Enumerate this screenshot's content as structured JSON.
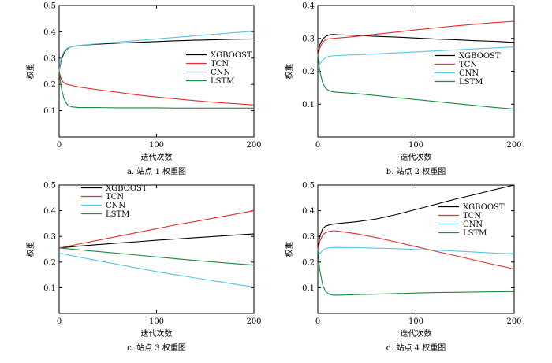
{
  "chart_data": [
    {
      "type": "line",
      "title": "",
      "caption": "a. 站点 1 权重图",
      "xlabel": "迭代次数",
      "ylabel": "权重",
      "xlim": [
        0,
        200
      ],
      "ylim": [
        0,
        0.5
      ],
      "xticks": [
        0,
        100,
        200
      ],
      "yticks": [
        0.1,
        0.2,
        0.3,
        0.4,
        0.5
      ],
      "legend_position": "middle-right",
      "series": [
        {
          "name": "XGBOOST",
          "color": "#000000",
          "x": [
            0,
            2,
            5,
            8,
            12,
            20,
            40,
            60,
            80,
            100,
            120,
            140,
            160,
            180,
            200
          ],
          "y": [
            0.25,
            0.29,
            0.32,
            0.335,
            0.343,
            0.348,
            0.353,
            0.357,
            0.36,
            0.363,
            0.366,
            0.368,
            0.37,
            0.372,
            0.373
          ]
        },
        {
          "name": "TCN",
          "color": "#e0312d",
          "x": [
            0,
            2,
            5,
            8,
            12,
            20,
            40,
            60,
            80,
            100,
            120,
            140,
            160,
            180,
            200
          ],
          "y": [
            0.25,
            0.22,
            0.205,
            0.2,
            0.197,
            0.19,
            0.18,
            0.17,
            0.16,
            0.152,
            0.145,
            0.138,
            0.132,
            0.127,
            0.122
          ]
        },
        {
          "name": "CNN",
          "color": "#5bc3e6",
          "x": [
            0,
            2,
            5,
            8,
            12,
            20,
            40,
            60,
            80,
            100,
            120,
            140,
            160,
            180,
            200
          ],
          "y": [
            0.25,
            0.3,
            0.325,
            0.337,
            0.343,
            0.348,
            0.355,
            0.361,
            0.367,
            0.373,
            0.379,
            0.385,
            0.391,
            0.397,
            0.402
          ]
        },
        {
          "name": "LSTM",
          "color": "#1b8a3f",
          "x": [
            0,
            2,
            5,
            8,
            12,
            20,
            40,
            60,
            80,
            100,
            120,
            140,
            160,
            180,
            200
          ],
          "y": [
            0.25,
            0.19,
            0.145,
            0.125,
            0.115,
            0.112,
            0.112,
            0.111,
            0.111,
            0.111,
            0.11,
            0.11,
            0.11,
            0.11,
            0.11
          ]
        }
      ]
    },
    {
      "type": "line",
      "title": "",
      "caption": "b. 站点 2 权重图",
      "xlabel": "迭代次数",
      "ylabel": "权重",
      "xlim": [
        0,
        200
      ],
      "ylim": [
        0,
        0.4
      ],
      "xticks": [
        0,
        100,
        200
      ],
      "yticks": [
        0.1,
        0.2,
        0.3,
        0.4
      ],
      "legend_position": "middle-right",
      "series": [
        {
          "name": "XGBOOST",
          "color": "#000000",
          "x": [
            0,
            2,
            5,
            8,
            12,
            16,
            20,
            40,
            60,
            80,
            100,
            120,
            140,
            160,
            180,
            200
          ],
          "y": [
            0.25,
            0.28,
            0.298,
            0.306,
            0.311,
            0.312,
            0.311,
            0.309,
            0.306,
            0.304,
            0.301,
            0.298,
            0.296,
            0.293,
            0.291,
            0.288
          ]
        },
        {
          "name": "TCN",
          "color": "#e0312d",
          "x": [
            0,
            2,
            5,
            8,
            12,
            20,
            40,
            60,
            80,
            100,
            120,
            140,
            160,
            180,
            200
          ],
          "y": [
            0.25,
            0.27,
            0.288,
            0.296,
            0.299,
            0.301,
            0.306,
            0.313,
            0.319,
            0.326,
            0.332,
            0.338,
            0.343,
            0.348,
            0.352
          ]
        },
        {
          "name": "CNN",
          "color": "#5bc3e6",
          "x": [
            0,
            2,
            5,
            8,
            12,
            20,
            40,
            60,
            80,
            100,
            120,
            140,
            160,
            180,
            200
          ],
          "y": [
            0.25,
            0.222,
            0.234,
            0.242,
            0.246,
            0.248,
            0.25,
            0.253,
            0.256,
            0.259,
            0.262,
            0.265,
            0.268,
            0.271,
            0.274
          ]
        },
        {
          "name": "LSTM",
          "color": "#1b8a3f",
          "x": [
            0,
            2,
            5,
            8,
            12,
            16,
            20,
            40,
            60,
            80,
            100,
            120,
            140,
            160,
            180,
            200
          ],
          "y": [
            0.25,
            0.2,
            0.165,
            0.148,
            0.14,
            0.137,
            0.136,
            0.132,
            0.126,
            0.12,
            0.114,
            0.108,
            0.102,
            0.096,
            0.09,
            0.085
          ]
        }
      ]
    },
    {
      "type": "line",
      "title": "",
      "caption": "c. 站点 3 权重图",
      "xlabel": "迭代次数",
      "ylabel": "权重",
      "xlim": [
        0,
        200
      ],
      "ylim": [
        0,
        0.5
      ],
      "xticks": [
        0,
        100,
        200
      ],
      "yticks": [
        0.1,
        0.2,
        0.3,
        0.4,
        0.5
      ],
      "legend_position": "top-left",
      "series": [
        {
          "name": "XGBOOST",
          "color": "#000000",
          "x": [
            0,
            20,
            40,
            60,
            80,
            100,
            120,
            140,
            160,
            180,
            200
          ],
          "y": [
            0.255,
            0.262,
            0.268,
            0.274,
            0.279,
            0.285,
            0.29,
            0.295,
            0.3,
            0.305,
            0.31
          ]
        },
        {
          "name": "TCN",
          "color": "#e0312d",
          "x": [
            0,
            20,
            40,
            60,
            80,
            100,
            120,
            140,
            160,
            180,
            200
          ],
          "y": [
            0.255,
            0.27,
            0.285,
            0.3,
            0.315,
            0.33,
            0.345,
            0.358,
            0.372,
            0.386,
            0.4
          ]
        },
        {
          "name": "CNN",
          "color": "#5bc3e6",
          "x": [
            0,
            20,
            40,
            60,
            80,
            100,
            120,
            140,
            160,
            180,
            200
          ],
          "y": [
            0.235,
            0.22,
            0.205,
            0.191,
            0.177,
            0.163,
            0.15,
            0.138,
            0.126,
            0.114,
            0.102
          ]
        },
        {
          "name": "LSTM",
          "color": "#1b8a3f",
          "x": [
            0,
            20,
            40,
            60,
            80,
            100,
            120,
            140,
            160,
            180,
            200
          ],
          "y": [
            0.255,
            0.248,
            0.241,
            0.234,
            0.227,
            0.22,
            0.213,
            0.206,
            0.2,
            0.194,
            0.188
          ]
        }
      ]
    },
    {
      "type": "line",
      "title": "",
      "caption": "d. 站点 4 权重图",
      "xlabel": "迭代次数",
      "ylabel": "权重",
      "xlim": [
        0,
        200
      ],
      "ylim": [
        0,
        0.5
      ],
      "xticks": [
        0,
        100,
        200
      ],
      "yticks": [
        0.1,
        0.2,
        0.3,
        0.4,
        0.5
      ],
      "legend_position": "top-right",
      "series": [
        {
          "name": "XGBOOST",
          "color": "#000000",
          "x": [
            0,
            2,
            5,
            8,
            12,
            20,
            40,
            60,
            80,
            100,
            120,
            140,
            160,
            180,
            200
          ],
          "y": [
            0.25,
            0.3,
            0.33,
            0.34,
            0.345,
            0.35,
            0.357,
            0.368,
            0.385,
            0.405,
            0.425,
            0.445,
            0.463,
            0.482,
            0.5
          ]
        },
        {
          "name": "TCN",
          "color": "#e0312d",
          "x": [
            0,
            2,
            5,
            8,
            12,
            16,
            20,
            40,
            60,
            80,
            100,
            120,
            140,
            160,
            180,
            200
          ],
          "y": [
            0.25,
            0.28,
            0.305,
            0.315,
            0.32,
            0.322,
            0.321,
            0.31,
            0.295,
            0.278,
            0.26,
            0.242,
            0.225,
            0.207,
            0.19,
            0.173
          ]
        },
        {
          "name": "CNN",
          "color": "#5bc3e6",
          "x": [
            0,
            2,
            5,
            8,
            12,
            20,
            40,
            60,
            80,
            100,
            120,
            140,
            160,
            180,
            200
          ],
          "y": [
            0.25,
            0.232,
            0.246,
            0.252,
            0.256,
            0.257,
            0.256,
            0.254,
            0.252,
            0.249,
            0.246,
            0.243,
            0.239,
            0.235,
            0.232
          ]
        },
        {
          "name": "LSTM",
          "color": "#1b8a3f",
          "x": [
            0,
            2,
            5,
            8,
            12,
            16,
            20,
            40,
            60,
            80,
            100,
            120,
            140,
            160,
            180,
            200
          ],
          "y": [
            0.25,
            0.17,
            0.11,
            0.085,
            0.074,
            0.071,
            0.071,
            0.073,
            0.075,
            0.077,
            0.079,
            0.081,
            0.082,
            0.083,
            0.084,
            0.085
          ]
        }
      ]
    }
  ]
}
